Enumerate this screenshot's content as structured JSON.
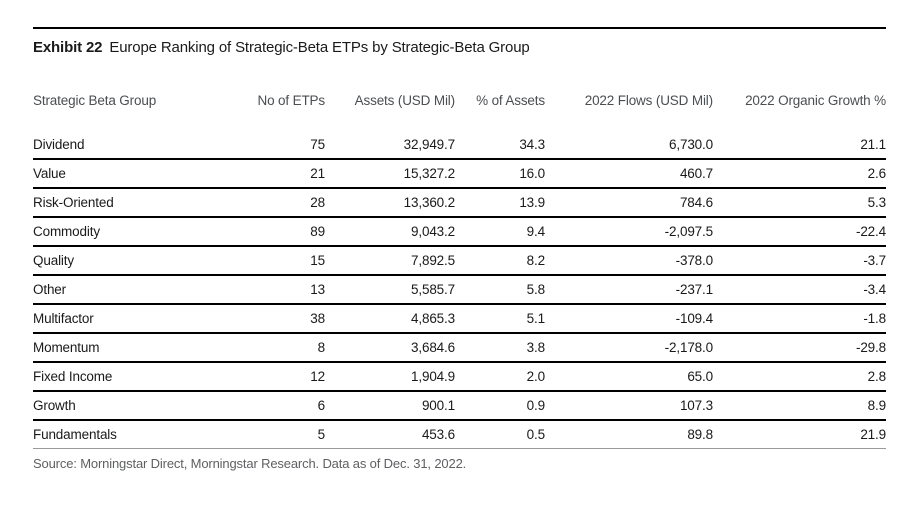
{
  "exhibit": {
    "label": "Exhibit 22",
    "title": "Europe Ranking of Strategic-Beta ETPs by Strategic-Beta Group"
  },
  "table": {
    "columns": [
      "Strategic Beta Group",
      "No of ETPs",
      "Assets (USD Mil)",
      "% of Assets",
      "2022 Flows (USD Mil)",
      "2022 Organic Growth %"
    ],
    "rows": [
      [
        "Dividend",
        "75",
        "32,949.7",
        "34.3",
        "6,730.0",
        "21.1"
      ],
      [
        "Value",
        "21",
        "15,327.2",
        "16.0",
        "460.7",
        "2.6"
      ],
      [
        "Risk-Oriented",
        "28",
        "13,360.2",
        "13.9",
        "784.6",
        "5.3"
      ],
      [
        "Commodity",
        "89",
        "9,043.2",
        "9.4",
        "-2,097.5",
        "-22.4"
      ],
      [
        "Quality",
        "15",
        "7,892.5",
        "8.2",
        "-378.0",
        "-3.7"
      ],
      [
        "Other",
        "13",
        "5,585.7",
        "5.8",
        "-237.1",
        "-3.4"
      ],
      [
        "Multifactor",
        "38",
        "4,865.3",
        "5.1",
        "-109.4",
        "-1.8"
      ],
      [
        "Momentum",
        "8",
        "3,684.6",
        "3.8",
        "-2,178.0",
        "-29.8"
      ],
      [
        "Fixed Income",
        "12",
        "1,904.9",
        "2.0",
        "65.0",
        "2.8"
      ],
      [
        "Growth",
        "6",
        "900.1",
        "0.9",
        "107.3",
        "8.9"
      ],
      [
        "Fundamentals",
        "5",
        "453.6",
        "0.5",
        "89.8",
        "21.9"
      ]
    ]
  },
  "source": "Source: Morningstar Direct, Morningstar Research. Data as of Dec. 31, 2022.",
  "colors": {
    "text": "#1a1a1a",
    "header_text": "#4b4e52",
    "source_text": "#5e6063",
    "rule": "#000000",
    "last_rule": "#9b9b9b"
  },
  "chart_data": {
    "type": "table",
    "title": "Exhibit 22 Europe Ranking of Strategic-Beta ETPs by Strategic-Beta Group",
    "columns": [
      "Strategic Beta Group",
      "No of ETPs",
      "Assets (USD Mil)",
      "% of Assets",
      "2022 Flows (USD Mil)",
      "2022 Organic Growth %"
    ],
    "rows": [
      {
        "group": "Dividend",
        "no_of_etps": 75,
        "assets_usd_mil": 32949.7,
        "pct_of_assets": 34.3,
        "flows_2022_usd_mil": 6730.0,
        "organic_growth_2022_pct": 21.1
      },
      {
        "group": "Value",
        "no_of_etps": 21,
        "assets_usd_mil": 15327.2,
        "pct_of_assets": 16.0,
        "flows_2022_usd_mil": 460.7,
        "organic_growth_2022_pct": 2.6
      },
      {
        "group": "Risk-Oriented",
        "no_of_etps": 28,
        "assets_usd_mil": 13360.2,
        "pct_of_assets": 13.9,
        "flows_2022_usd_mil": 784.6,
        "organic_growth_2022_pct": 5.3
      },
      {
        "group": "Commodity",
        "no_of_etps": 89,
        "assets_usd_mil": 9043.2,
        "pct_of_assets": 9.4,
        "flows_2022_usd_mil": -2097.5,
        "organic_growth_2022_pct": -22.4
      },
      {
        "group": "Quality",
        "no_of_etps": 15,
        "assets_usd_mil": 7892.5,
        "pct_of_assets": 8.2,
        "flows_2022_usd_mil": -378.0,
        "organic_growth_2022_pct": -3.7
      },
      {
        "group": "Other",
        "no_of_etps": 13,
        "assets_usd_mil": 5585.7,
        "pct_of_assets": 5.8,
        "flows_2022_usd_mil": -237.1,
        "organic_growth_2022_pct": -3.4
      },
      {
        "group": "Multifactor",
        "no_of_etps": 38,
        "assets_usd_mil": 4865.3,
        "pct_of_assets": 5.1,
        "flows_2022_usd_mil": -109.4,
        "organic_growth_2022_pct": -1.8
      },
      {
        "group": "Momentum",
        "no_of_etps": 8,
        "assets_usd_mil": 3684.6,
        "pct_of_assets": 3.8,
        "flows_2022_usd_mil": -2178.0,
        "organic_growth_2022_pct": -29.8
      },
      {
        "group": "Fixed Income",
        "no_of_etps": 12,
        "assets_usd_mil": 1904.9,
        "pct_of_assets": 2.0,
        "flows_2022_usd_mil": 65.0,
        "organic_growth_2022_pct": 2.8
      },
      {
        "group": "Growth",
        "no_of_etps": 6,
        "assets_usd_mil": 900.1,
        "pct_of_assets": 0.9,
        "flows_2022_usd_mil": 107.3,
        "organic_growth_2022_pct": 8.9
      },
      {
        "group": "Fundamentals",
        "no_of_etps": 5,
        "assets_usd_mil": 453.6,
        "pct_of_assets": 0.5,
        "flows_2022_usd_mil": 89.8,
        "organic_growth_2022_pct": 21.9
      }
    ],
    "footnote": "Source: Morningstar Direct, Morningstar Research. Data as of Dec. 31, 2022."
  }
}
